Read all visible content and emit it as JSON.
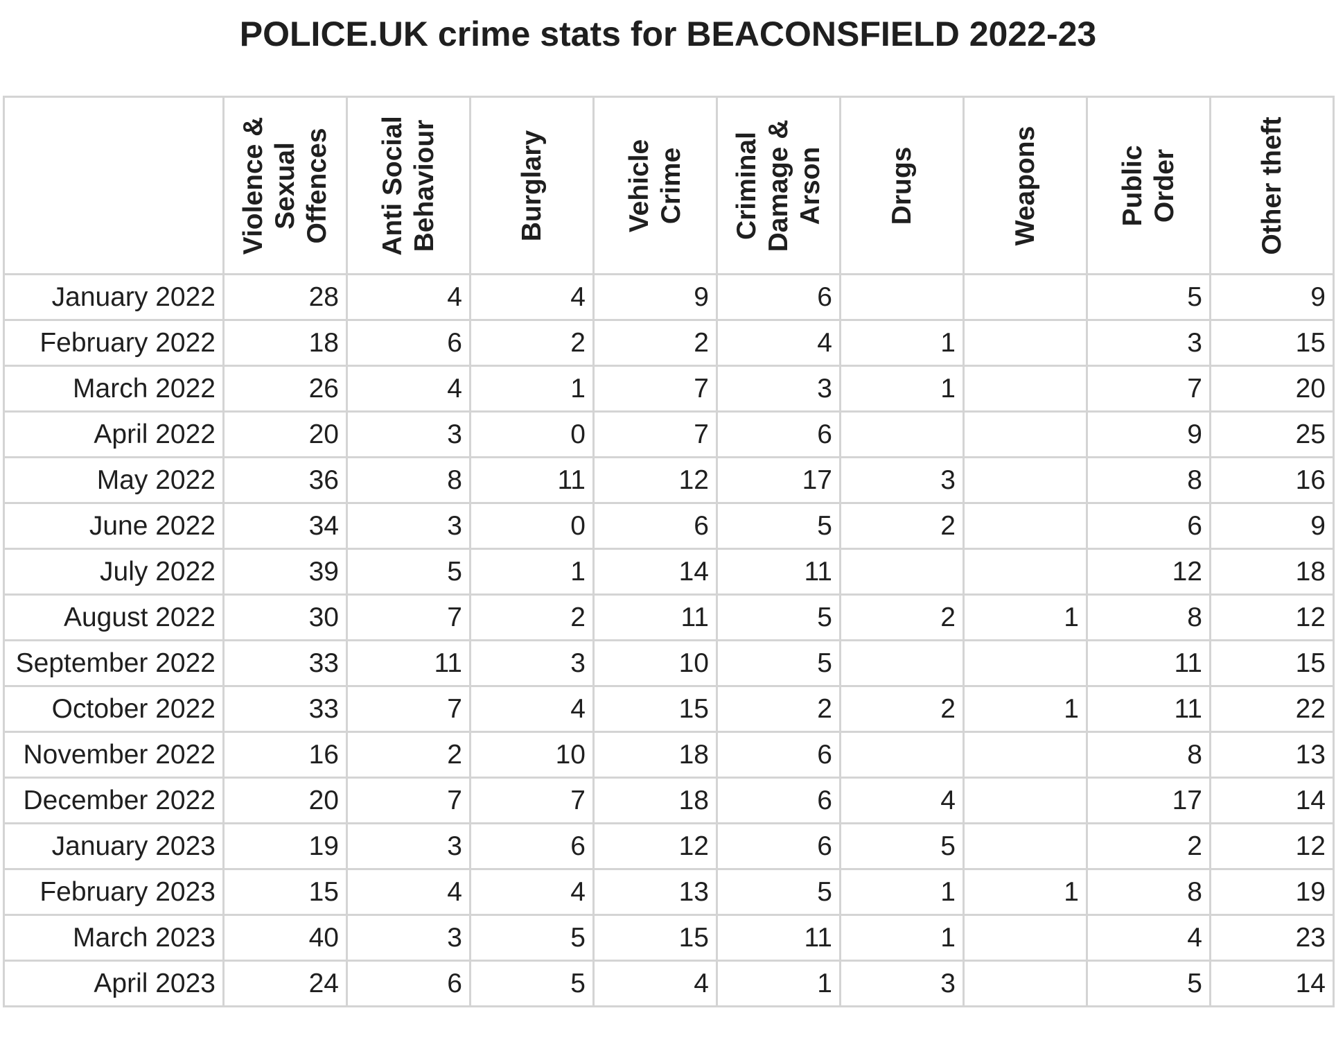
{
  "chart_data": {
    "type": "table",
    "title": "POLICE.UK crime stats for BEACONSFIELD 2022-23",
    "columns": [
      "Violence & Sexual Offences",
      "Anti Social Behaviour",
      "Burglary",
      "Vehicle Crime",
      "Criminal Damage & Arson",
      "Drugs",
      "Weapons",
      "Public Order",
      "Other theft"
    ],
    "rows": [
      {
        "label": "January 2022",
        "values": [
          "28",
          "4",
          "4",
          "9",
          "6",
          "",
          "",
          "5",
          "9"
        ]
      },
      {
        "label": "February 2022",
        "values": [
          "18",
          "6",
          "2",
          "2",
          "4",
          "1",
          "",
          "3",
          "15"
        ]
      },
      {
        "label": "March 2022",
        "values": [
          "26",
          "4",
          "1",
          "7",
          "3",
          "1",
          "",
          "7",
          "20"
        ]
      },
      {
        "label": "April 2022",
        "values": [
          "20",
          "3",
          "0",
          "7",
          "6",
          "",
          "",
          "9",
          "25"
        ]
      },
      {
        "label": "May 2022",
        "values": [
          "36",
          "8",
          "11",
          "12",
          "17",
          "3",
          "",
          "8",
          "16"
        ]
      },
      {
        "label": "June 2022",
        "values": [
          "34",
          "3",
          "0",
          "6",
          "5",
          "2",
          "",
          "6",
          "9"
        ]
      },
      {
        "label": "July 2022",
        "values": [
          "39",
          "5",
          "1",
          "14",
          "11",
          "",
          "",
          "12",
          "18"
        ]
      },
      {
        "label": "August 2022",
        "values": [
          "30",
          "7",
          "2",
          "11",
          "5",
          "2",
          "1",
          "8",
          "12"
        ]
      },
      {
        "label": "September 2022",
        "values": [
          "33",
          "11",
          "3",
          "10",
          "5",
          "",
          "",
          "11",
          "15"
        ]
      },
      {
        "label": "October 2022",
        "values": [
          "33",
          "7",
          "4",
          "15",
          "2",
          "2",
          "1",
          "11",
          "22"
        ]
      },
      {
        "label": "November 2022",
        "values": [
          "16",
          "2",
          "10",
          "18",
          "6",
          "",
          "",
          "8",
          "13"
        ]
      },
      {
        "label": "December 2022",
        "values": [
          "20",
          "7",
          "7",
          "18",
          "6",
          "4",
          "",
          "17",
          "14"
        ]
      },
      {
        "label": "January 2023",
        "values": [
          "19",
          "3",
          "6",
          "12",
          "6",
          "5",
          "",
          "2",
          "12"
        ]
      },
      {
        "label": "February 2023",
        "values": [
          "15",
          "4",
          "4",
          "13",
          "5",
          "1",
          "1",
          "8",
          "19"
        ]
      },
      {
        "label": "March 2023",
        "values": [
          "40",
          "3",
          "5",
          "15",
          "11",
          "1",
          "",
          "4",
          "23"
        ]
      },
      {
        "label": "April 2023",
        "values": [
          "24",
          "6",
          "5",
          "4",
          "1",
          "3",
          "",
          "5",
          "14"
        ]
      }
    ]
  },
  "colors": {
    "text": "#1f1f1f",
    "grid": "#d4d4d4",
    "background": "#ffffff"
  }
}
